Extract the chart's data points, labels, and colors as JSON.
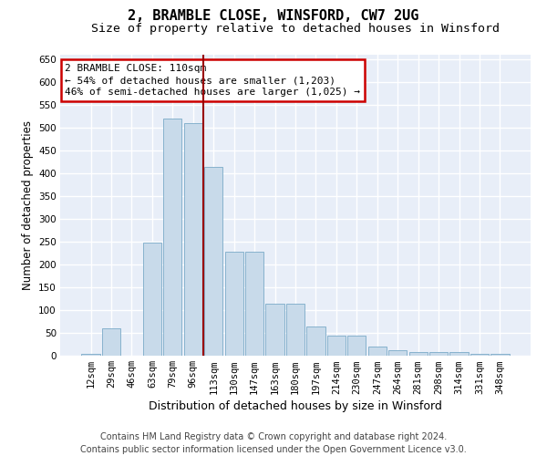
{
  "title": "2, BRAMBLE CLOSE, WINSFORD, CW7 2UG",
  "subtitle": "Size of property relative to detached houses in Winsford",
  "xlabel": "Distribution of detached houses by size in Winsford",
  "ylabel": "Number of detached properties",
  "bar_color": "#c8daea",
  "bar_edge_color": "#7aaac8",
  "categories": [
    "12sqm",
    "29sqm",
    "46sqm",
    "63sqm",
    "79sqm",
    "96sqm",
    "113sqm",
    "130sqm",
    "147sqm",
    "163sqm",
    "180sqm",
    "197sqm",
    "214sqm",
    "230sqm",
    "247sqm",
    "264sqm",
    "281sqm",
    "298sqm",
    "314sqm",
    "331sqm",
    "348sqm"
  ],
  "values": [
    5,
    60,
    0,
    248,
    520,
    510,
    415,
    228,
    228,
    115,
    115,
    65,
    45,
    45,
    20,
    12,
    8,
    8,
    8,
    5,
    5
  ],
  "property_line_idx": 6,
  "property_line_color": "#990000",
  "annotation_line1": "2 BRAMBLE CLOSE: 110sqm",
  "annotation_line2": "← 54% of detached houses are smaller (1,203)",
  "annotation_line3": "46% of semi-detached houses are larger (1,025) →",
  "annotation_box_color": "#cc0000",
  "ylim": [
    0,
    660
  ],
  "yticks": [
    0,
    50,
    100,
    150,
    200,
    250,
    300,
    350,
    400,
    450,
    500,
    550,
    600,
    650
  ],
  "fig_bg_color": "#ffffff",
  "plot_bg_color": "#e8eef8",
  "grid_color": "#ffffff",
  "title_fontsize": 11,
  "subtitle_fontsize": 9.5,
  "ylabel_fontsize": 8.5,
  "xlabel_fontsize": 9,
  "tick_fontsize": 7.5,
  "annot_fontsize": 8,
  "footer_fontsize": 7,
  "footer_line1": "Contains HM Land Registry data © Crown copyright and database right 2024.",
  "footer_line2": "Contains public sector information licensed under the Open Government Licence v3.0."
}
